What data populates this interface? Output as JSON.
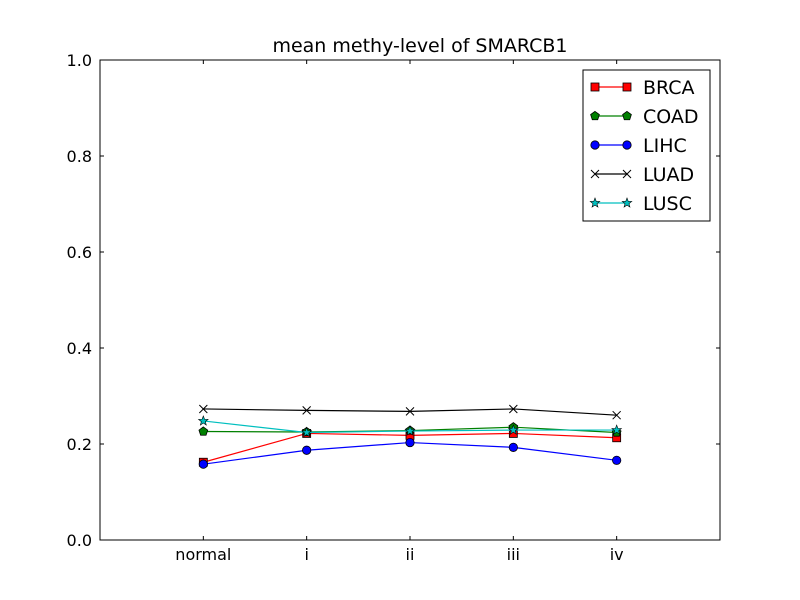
{
  "chart_data": {
    "type": "line",
    "title": "mean methy-level of SMARCB1",
    "xlabel": "",
    "ylabel": "",
    "categories": [
      "normal",
      "i",
      "ii",
      "iii",
      "iv"
    ],
    "ylim": [
      0.0,
      1.0
    ],
    "yticks": [
      "0.0",
      "0.2",
      "0.4",
      "0.6",
      "0.8",
      "1.0"
    ],
    "grid": false,
    "legend_position": "top-right",
    "series": [
      {
        "name": "BRCA",
        "color": "#ff0000",
        "marker": "square",
        "values": [
          0.162,
          0.222,
          0.218,
          0.222,
          0.213
        ]
      },
      {
        "name": "COAD",
        "color": "#008000",
        "marker": "pentagon",
        "values": [
          0.226,
          0.225,
          0.228,
          0.235,
          0.224
        ]
      },
      {
        "name": "LIHC",
        "color": "#0000ff",
        "marker": "circle",
        "values": [
          0.158,
          0.187,
          0.203,
          0.193,
          0.166
        ]
      },
      {
        "name": "LUAD",
        "color": "#000000",
        "marker": "x",
        "values": [
          0.273,
          0.27,
          0.268,
          0.273,
          0.26
        ]
      },
      {
        "name": "LUSC",
        "color": "#00bfbf",
        "marker": "star",
        "values": [
          0.248,
          0.224,
          0.227,
          0.229,
          0.229
        ]
      }
    ]
  }
}
